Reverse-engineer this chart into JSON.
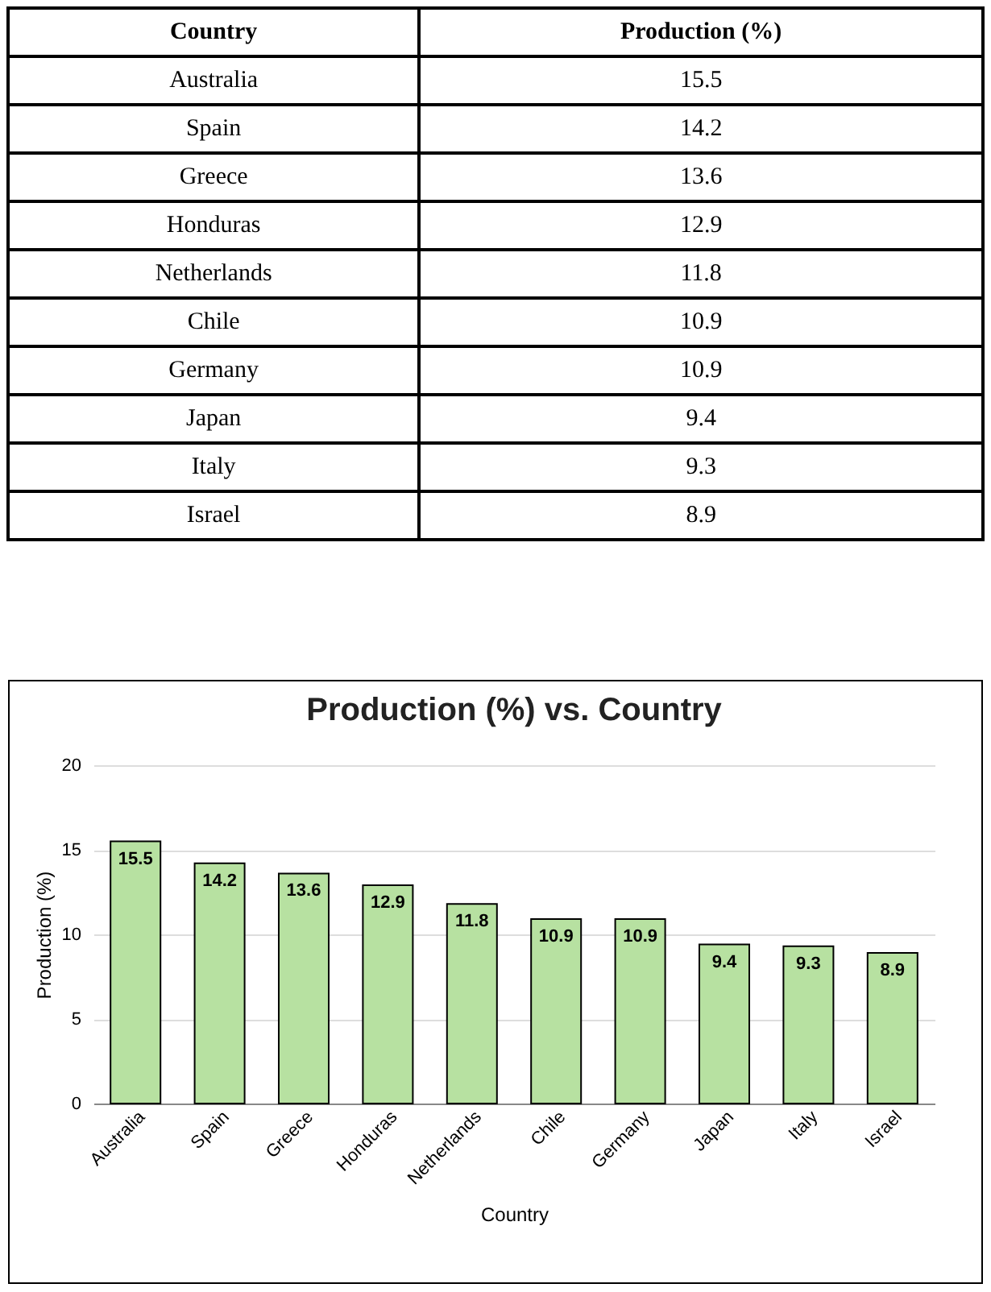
{
  "chart_data": [
    {
      "type": "other",
      "xlabel": "Country",
      "ylabel": "Production (%)",
      "categories": [
        "Australia",
        "Spain",
        "Greece",
        "Honduras",
        "Netherlands",
        "Chile",
        "Germany",
        "Japan",
        "Italy",
        "Israel"
      ],
      "values": [
        15.5,
        14.2,
        13.6,
        12.9,
        11.8,
        10.9,
        10.9,
        9.4,
        9.3,
        8.9
      ],
      "data_labels": true
    },
    {
      "type": "bar",
      "title": "Production (%) vs. Country",
      "xlabel": "Country",
      "ylabel": "Production (%)",
      "categories": [
        "Australia",
        "Spain",
        "Greece",
        "Honduras",
        "Netherlands",
        "Chile",
        "Germany",
        "Japan",
        "Italy",
        "Israel"
      ],
      "values": [
        15.5,
        14.2,
        13.6,
        12.9,
        11.8,
        10.9,
        10.9,
        9.4,
        9.3,
        8.9
      ],
      "color": "#b7e1a1",
      "ylim": [
        0,
        20
      ],
      "yticks": [
        0,
        5,
        10,
        15,
        20
      ],
      "grid": "y",
      "data_labels": true
    }
  ]
}
